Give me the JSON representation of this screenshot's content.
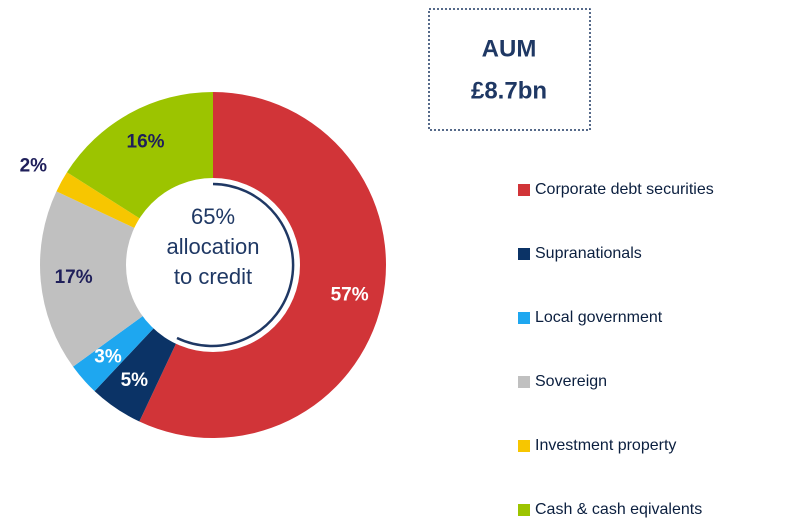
{
  "chart_data": {
    "type": "donut",
    "categories": [
      "Corporate debt securities",
      "Supranationals",
      "Local government",
      "Sovereign",
      "Investment property",
      "Cash & cash eqivalents"
    ],
    "values": [
      57,
      5,
      3,
      17,
      2,
      16
    ],
    "value_labels": [
      "57%",
      "5%",
      "3%",
      "17%",
      "2%",
      "16%"
    ],
    "colors": [
      "#d13438",
      "#0b3366",
      "#1ea7f0",
      "#c0c0c0",
      "#f7c600",
      "#9cc400"
    ],
    "center_text": [
      "65%",
      "allocation",
      "to credit"
    ],
    "aum_box": [
      "AUM",
      "£8.7bn"
    ],
    "legend": "right"
  }
}
